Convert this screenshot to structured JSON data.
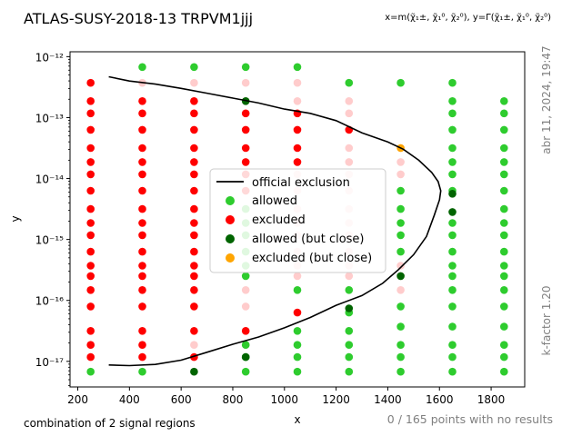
{
  "chart_data": {
    "type": "scatter",
    "title": "ATLAS-SUSY-2018-13 TRPVM1jjj",
    "axis_note": "x=m(χ̃₁±, χ̃₁⁰, χ̃₂⁰), y=Γ(χ̃₁±, χ̃₁⁰, χ̃₂⁰)",
    "xlabel": "x",
    "ylabel": "y",
    "xlim": [
      170,
      1930
    ],
    "ylim_log10": [
      -17.42,
      -11.92
    ],
    "x_ticks": [
      200,
      400,
      600,
      800,
      1000,
      1200,
      1400,
      1600,
      1800
    ],
    "y_tick_exponents": [
      -17,
      -16,
      -15,
      -14,
      -13,
      -12
    ],
    "y_tick_labels": [
      "10⁻¹⁷",
      "10⁻¹⁶",
      "10⁻¹⁵",
      "10⁻¹⁴",
      "10⁻¹³",
      "10⁻¹²"
    ],
    "grid": false,
    "legend_position": "center",
    "legend": [
      {
        "key": "official",
        "label": "official exclusion"
      },
      {
        "key": "allowed",
        "label": "allowed"
      },
      {
        "key": "excluded",
        "label": "excluded"
      },
      {
        "key": "allowed_close",
        "label": "allowed (but close)"
      },
      {
        "key": "excluded_close",
        "label": "excluded (but close)"
      }
    ],
    "colors": {
      "allowed": "#2ecc2e",
      "excluded": "#ff0000",
      "allowed_close": "#006400",
      "excluded_close": "#ffa500",
      "official": "#000000",
      "pale_red": "#ffcccc",
      "gray_text": "#808080"
    },
    "series": [
      {
        "name": "allowed",
        "points": [
          [
            250,
            -17.17
          ],
          [
            450,
            -17.17
          ],
          [
            850,
            -17.17
          ],
          [
            1050,
            -17.17
          ],
          [
            1250,
            -17.17
          ],
          [
            1450,
            -17.17
          ],
          [
            1650,
            -17.17
          ],
          [
            1850,
            -17.17
          ],
          [
            650,
            -12.17
          ],
          [
            850,
            -12.17
          ],
          [
            1050,
            -12.17
          ],
          [
            450,
            -12.17
          ],
          [
            1250,
            -12.43
          ],
          [
            1450,
            -12.43
          ],
          [
            1650,
            -12.43
          ],
          [
            1650,
            -12.73
          ],
          [
            1850,
            -12.73
          ],
          [
            1650,
            -12.93
          ],
          [
            1850,
            -12.93
          ],
          [
            1650,
            -13.2
          ],
          [
            1850,
            -13.2
          ],
          [
            1650,
            -13.5
          ],
          [
            1850,
            -13.5
          ],
          [
            1650,
            -13.73
          ],
          [
            1850,
            -13.73
          ],
          [
            1650,
            -13.93
          ],
          [
            1850,
            -13.93
          ],
          [
            1450,
            -14.2
          ],
          [
            1650,
            -14.2
          ],
          [
            1850,
            -14.2
          ],
          [
            1450,
            -14.5
          ],
          [
            1850,
            -14.5
          ],
          [
            1450,
            -14.73
          ],
          [
            1650,
            -14.73
          ],
          [
            1850,
            -14.73
          ],
          [
            1450,
            -14.93
          ],
          [
            1650,
            -14.93
          ],
          [
            1850,
            -14.93
          ],
          [
            1450,
            -15.2
          ],
          [
            1650,
            -15.2
          ],
          [
            1850,
            -15.2
          ],
          [
            1650,
            -15.43
          ],
          [
            1850,
            -15.43
          ],
          [
            1650,
            -15.6
          ],
          [
            1850,
            -15.6
          ],
          [
            1650,
            -15.83
          ],
          [
            1850,
            -15.83
          ],
          [
            1450,
            -16.1
          ],
          [
            1650,
            -16.1
          ],
          [
            1850,
            -16.1
          ],
          [
            1450,
            -16.43
          ],
          [
            1650,
            -16.43
          ],
          [
            1850,
            -16.43
          ],
          [
            1250,
            -16.5
          ],
          [
            1450,
            -16.73
          ],
          [
            1650,
            -16.73
          ],
          [
            1850,
            -16.73
          ],
          [
            1250,
            -16.93
          ],
          [
            1450,
            -16.93
          ],
          [
            1650,
            -16.93
          ],
          [
            1850,
            -16.93
          ],
          [
            850,
            -16.93
          ],
          [
            1050,
            -16.93
          ],
          [
            1050,
            -16.73
          ],
          [
            1250,
            -16.73
          ],
          [
            1050,
            -16.5
          ],
          [
            850,
            -16.73
          ],
          [
            1250,
            -16.2
          ],
          [
            1050,
            -15.83
          ],
          [
            1250,
            -15.83
          ],
          [
            850,
            -15.6
          ],
          [
            850,
            -15.43
          ],
          [
            850,
            -15.2
          ],
          [
            850,
            -14.93
          ],
          [
            850,
            -14.73
          ],
          [
            850,
            -14.5
          ]
        ]
      },
      {
        "name": "excluded",
        "points": [
          [
            250,
            -12.43
          ],
          [
            250,
            -12.73
          ],
          [
            250,
            -12.93
          ],
          [
            250,
            -13.2
          ],
          [
            250,
            -13.5
          ],
          [
            250,
            -13.73
          ],
          [
            250,
            -13.93
          ],
          [
            250,
            -14.2
          ],
          [
            250,
            -14.5
          ],
          [
            250,
            -14.73
          ],
          [
            250,
            -14.93
          ],
          [
            250,
            -15.2
          ],
          [
            250,
            -15.43
          ],
          [
            250,
            -15.6
          ],
          [
            250,
            -15.83
          ],
          [
            250,
            -16.1
          ],
          [
            250,
            -16.5
          ],
          [
            250,
            -16.73
          ],
          [
            250,
            -16.93
          ],
          [
            450,
            -12.73
          ],
          [
            450,
            -12.93
          ],
          [
            450,
            -13.2
          ],
          [
            450,
            -13.5
          ],
          [
            450,
            -13.73
          ],
          [
            450,
            -13.93
          ],
          [
            450,
            -14.2
          ],
          [
            450,
            -14.5
          ],
          [
            450,
            -14.73
          ],
          [
            450,
            -14.93
          ],
          [
            450,
            -15.2
          ],
          [
            450,
            -15.43
          ],
          [
            450,
            -15.6
          ],
          [
            450,
            -15.83
          ],
          [
            450,
            -16.1
          ],
          [
            450,
            -16.5
          ],
          [
            450,
            -16.73
          ],
          [
            450,
            -16.93
          ],
          [
            650,
            -12.73
          ],
          [
            650,
            -12.93
          ],
          [
            650,
            -13.2
          ],
          [
            650,
            -13.5
          ],
          [
            650,
            -13.73
          ],
          [
            650,
            -13.93
          ],
          [
            650,
            -14.2
          ],
          [
            650,
            -14.5
          ],
          [
            650,
            -14.73
          ],
          [
            650,
            -14.93
          ],
          [
            650,
            -15.2
          ],
          [
            650,
            -15.43
          ],
          [
            650,
            -15.6
          ],
          [
            650,
            -15.83
          ],
          [
            650,
            -16.1
          ],
          [
            650,
            -16.5
          ],
          [
            650,
            -16.93
          ],
          [
            850,
            -12.93
          ],
          [
            850,
            -13.2
          ],
          [
            850,
            -13.5
          ],
          [
            850,
            -13.73
          ],
          [
            850,
            -13.93
          ],
          [
            850,
            -14.2
          ],
          [
            850,
            -16.5
          ],
          [
            1050,
            -12.93
          ],
          [
            1050,
            -13.2
          ],
          [
            1050,
            -13.5
          ],
          [
            1050,
            -13.73
          ],
          [
            1050,
            -16.2
          ],
          [
            1250,
            -13.2
          ]
        ]
      },
      {
        "name": "excluded_pale",
        "points": [
          [
            450,
            -12.43
          ],
          [
            650,
            -12.43
          ],
          [
            850,
            -12.43
          ],
          [
            1050,
            -12.43
          ],
          [
            650,
            -12.73
          ],
          [
            850,
            -12.73
          ],
          [
            1050,
            -12.73
          ],
          [
            1250,
            -12.73
          ],
          [
            1250,
            -12.93
          ],
          [
            1250,
            -13.5
          ],
          [
            1250,
            -13.73
          ],
          [
            1250,
            -13.93
          ],
          [
            1250,
            -14.2
          ],
          [
            1250,
            -14.5
          ],
          [
            1250,
            -14.73
          ],
          [
            1250,
            -14.93
          ],
          [
            1250,
            -15.2
          ],
          [
            1250,
            -15.43
          ],
          [
            1250,
            -15.6
          ],
          [
            1050,
            -13.93
          ],
          [
            1050,
            -14.2
          ],
          [
            1050,
            -14.5
          ],
          [
            1050,
            -14.73
          ],
          [
            1050,
            -14.93
          ],
          [
            1050,
            -15.2
          ],
          [
            1050,
            -15.43
          ],
          [
            1050,
            -15.6
          ],
          [
            850,
            -15.83
          ],
          [
            850,
            -16.1
          ],
          [
            850,
            -16.5
          ],
          [
            650,
            -16.73
          ],
          [
            850,
            -16.73
          ],
          [
            1450,
            -13.5
          ],
          [
            1450,
            -13.73
          ],
          [
            1450,
            -13.93
          ],
          [
            1450,
            -15.43
          ],
          [
            1450,
            -15.6
          ],
          [
            1450,
            -15.83
          ]
        ]
      },
      {
        "name": "allowed_close",
        "points": [
          [
            850,
            -12.73
          ],
          [
            650,
            -17.17
          ],
          [
            850,
            -16.93
          ],
          [
            1650,
            -14.25
          ],
          [
            1650,
            -14.55
          ],
          [
            1450,
            -15.6
          ],
          [
            1250,
            -16.13
          ]
        ]
      },
      {
        "name": "excluded_close",
        "points": [
          [
            1450,
            -13.5
          ]
        ]
      }
    ],
    "official_exclusion": [
      [
        320,
        -12.33
      ],
      [
        400,
        -12.4
      ],
      [
        500,
        -12.45
      ],
      [
        600,
        -12.52
      ],
      [
        700,
        -12.6
      ],
      [
        800,
        -12.68
      ],
      [
        900,
        -12.76
      ],
      [
        1000,
        -12.86
      ],
      [
        1100,
        -12.93
      ],
      [
        1200,
        -13.05
      ],
      [
        1300,
        -13.25
      ],
      [
        1400,
        -13.4
      ],
      [
        1460,
        -13.52
      ],
      [
        1520,
        -13.7
      ],
      [
        1570,
        -13.9
      ],
      [
        1595,
        -14.05
      ],
      [
        1605,
        -14.2
      ],
      [
        1600,
        -14.35
      ],
      [
        1580,
        -14.6
      ],
      [
        1550,
        -14.95
      ],
      [
        1500,
        -15.25
      ],
      [
        1440,
        -15.5
      ],
      [
        1380,
        -15.72
      ],
      [
        1300,
        -15.92
      ],
      [
        1200,
        -16.08
      ],
      [
        1100,
        -16.28
      ],
      [
        1000,
        -16.45
      ],
      [
        900,
        -16.6
      ],
      [
        800,
        -16.72
      ],
      [
        700,
        -16.85
      ],
      [
        600,
        -16.98
      ],
      [
        500,
        -17.05
      ],
      [
        400,
        -17.07
      ],
      [
        320,
        -17.06
      ]
    ]
  },
  "annotations": {
    "bottom_left": "combination of 2 signal regions",
    "bottom_right": "0 / 165 points with no results",
    "right_top": "abr 11, 2024, 19:47",
    "right_bottom": "k-factor 1.20"
  }
}
